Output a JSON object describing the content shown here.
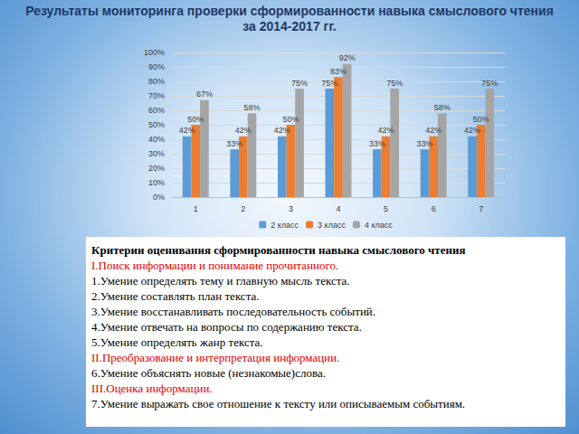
{
  "chart_data": {
    "type": "bar",
    "title": "Результаты мониторинга  проверки сформированности навыка смыслового чтения за  2014-2017 гг.",
    "categories": [
      "1",
      "2",
      "3",
      "4",
      "5",
      "6",
      "7"
    ],
    "series": [
      {
        "name": "2 класс",
        "color": "#5b9bd5",
        "values": [
          42,
          33,
          42,
          75,
          33,
          33,
          42
        ],
        "value_labels": [
          "42%",
          "33%",
          "42%",
          "75%",
          "33%",
          "33%",
          "42%"
        ]
      },
      {
        "name": "3 класс",
        "color": "#ed7d31",
        "values": [
          50,
          42,
          50,
          83,
          42,
          42,
          50
        ],
        "value_labels": [
          "50%",
          "42%",
          "50%",
          "83%",
          "42%",
          "42%",
          "50%"
        ]
      },
      {
        "name": "4 класс",
        "color": "#a5a5a5",
        "values": [
          67,
          58,
          75,
          92,
          75,
          58,
          75
        ],
        "value_labels": [
          "67%",
          "58%",
          "75%",
          "92%",
          "75%",
          "58%",
          "75%"
        ]
      }
    ],
    "ylim": [
      0,
      100
    ],
    "yticks": [
      {
        "value": 0,
        "label": "0%"
      },
      {
        "value": 10,
        "label": "10%"
      },
      {
        "value": 20,
        "label": "20%"
      },
      {
        "value": 30,
        "label": "30%"
      },
      {
        "value": 40,
        "label": "40%"
      },
      {
        "value": 50,
        "label": "50%"
      },
      {
        "value": 60,
        "label": "60%"
      },
      {
        "value": 70,
        "label": "70%"
      },
      {
        "value": 80,
        "label": "80%"
      },
      {
        "value": 90,
        "label": "90%"
      },
      {
        "value": 100,
        "label": "100%"
      }
    ],
    "grid": true,
    "legend": "bottom",
    "data_labels": true
  },
  "criteria": {
    "title": "Критерии оценивания сформированности навыка смыслового чтения",
    "lines": [
      {
        "text": "I.Поиск информации и понимание прочитанного.",
        "kind": "section"
      },
      {
        "text": "1.Умение определять тему и главную мысль текста.",
        "kind": "item"
      },
      {
        "text": "2.Умение составлять план текста.",
        "kind": "item"
      },
      {
        "text": "3.Умение восстанавливать последовательность событий.",
        "kind": "item"
      },
      {
        "text": "4.Умение отвечать на вопросы по содержанию текста.",
        "kind": "item"
      },
      {
        "text": "5.Умение определять жанр текста.",
        "kind": "item"
      },
      {
        "text": "II.Преобразование и интерпретация информации.",
        "kind": "section"
      },
      {
        "text": "6.Умение объяснять новые (незнакомые)слова.",
        "kind": "item"
      },
      {
        "text": "III.Оценка информации.",
        "kind": "section"
      },
      {
        "text": "7.Умение выражать свое отношение к тексту или описываемым событиям.",
        "kind": "item"
      }
    ]
  }
}
